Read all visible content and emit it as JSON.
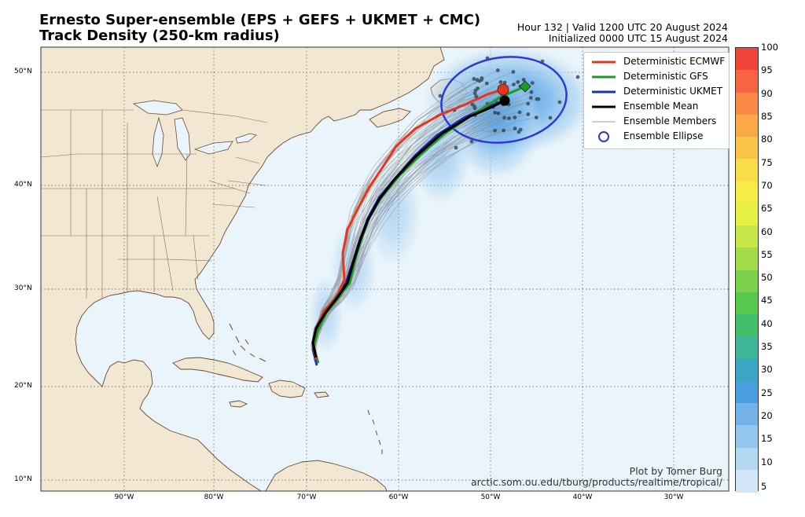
{
  "header": {
    "title_line1": "Ernesto Super-ensemble (EPS + GEFS + UKMET + CMC)",
    "title_line2": "Track Density (250-km radius)",
    "valid_line": "Hour 132 | Valid 1200 UTC 20 August 2024",
    "init_line": "Initialized 0000 UTC 15 August 2024"
  },
  "legend": [
    {
      "label": "Deterministic ECMWF",
      "color": "#e8341c",
      "style": "thick-line"
    },
    {
      "label": "Deterministic GFS",
      "color": "#1f9a27",
      "style": "thick-line"
    },
    {
      "label": "Deterministic UKMET",
      "color": "#1c2fbf",
      "style": "thick-line"
    },
    {
      "label": "Ensemble Mean",
      "color": "#000000",
      "style": "thick-line"
    },
    {
      "label": "Ensemble Members",
      "color": "#9a9a9a",
      "style": "thin-line"
    },
    {
      "label": "Ensemble Ellipse",
      "color": "#2b39d9",
      "style": "circle"
    }
  ],
  "axes": {
    "lat_labels": [
      "50°N",
      "40°N",
      "30°N",
      "20°N",
      "10°N"
    ],
    "lon_labels": [
      "90°W",
      "80°W",
      "70°W",
      "60°W",
      "50°W",
      "40°W",
      "30°W"
    ]
  },
  "colorbar": {
    "ticks": [
      "100",
      "95",
      "90",
      "85",
      "80",
      "75",
      "70",
      "65",
      "60",
      "55",
      "50",
      "45",
      "40",
      "35",
      "30",
      "25",
      "20",
      "15",
      "10",
      "5"
    ],
    "colors": [
      "#f0443b",
      "#f76441",
      "#fa8a46",
      "#faa946",
      "#fac44b",
      "#f9dc4a",
      "#f6ec46",
      "#e7f044",
      "#c7e848",
      "#a3dc4a",
      "#7cd24a",
      "#55c94b",
      "#43bf6b",
      "#3fb597",
      "#3aa6c4",
      "#4a9ee0",
      "#73b3ea",
      "#94c6ee",
      "#b4d7f2",
      "#d2e6f7"
    ]
  },
  "credit": {
    "line1": "Plot by Tomer Burg",
    "line2": "arctic.som.ou.edu/tburg/products/realtime/tropical/"
  },
  "colors": {
    "ocean": "#e9f4fb",
    "land": "#f1e7d2",
    "coast": "#6a4a36",
    "ellipse": "#2b39d9"
  }
}
